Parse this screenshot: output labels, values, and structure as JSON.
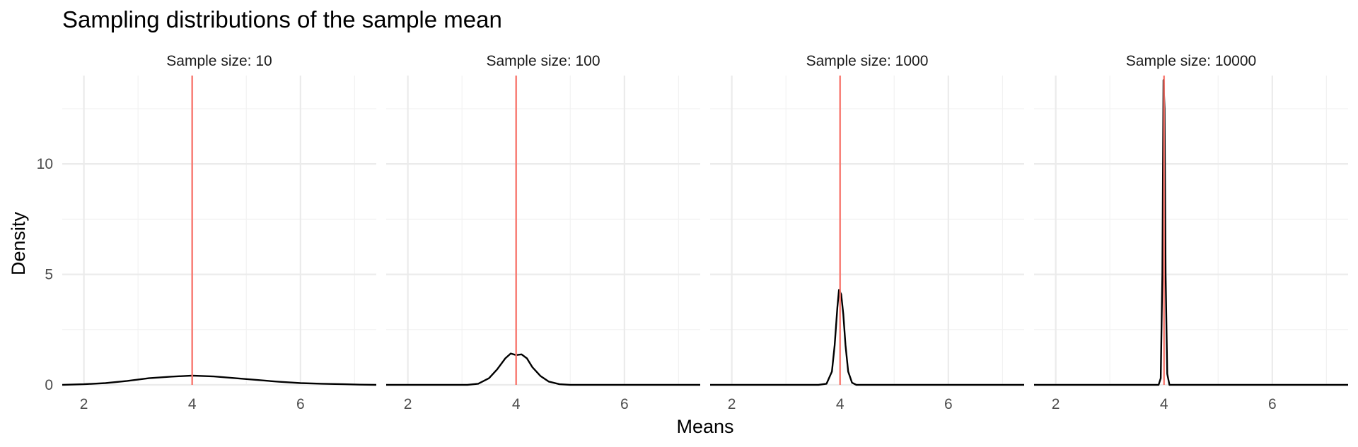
{
  "chart_data": {
    "type": "line",
    "title": "Sampling distributions of the sample mean",
    "xlabel": "Means",
    "ylabel": "Density",
    "xlim": [
      1.6,
      7.4
    ],
    "ylim": [
      0,
      14
    ],
    "x_ticks": [
      2,
      4,
      6
    ],
    "y_ticks": [
      0,
      5,
      10
    ],
    "grid": true,
    "reference_line": {
      "x": 4,
      "color": "#f8766d"
    },
    "line_color": "#000000",
    "panels": [
      {
        "label": "Sample size: 10",
        "points": [
          [
            1.6,
            0.0
          ],
          [
            2.0,
            0.03
          ],
          [
            2.4,
            0.08
          ],
          [
            2.8,
            0.18
          ],
          [
            3.2,
            0.3
          ],
          [
            3.6,
            0.37
          ],
          [
            4.0,
            0.42
          ],
          [
            4.4,
            0.38
          ],
          [
            4.8,
            0.3
          ],
          [
            5.2,
            0.22
          ],
          [
            5.6,
            0.14
          ],
          [
            6.0,
            0.08
          ],
          [
            6.4,
            0.05
          ],
          [
            6.8,
            0.03
          ],
          [
            7.1,
            0.01
          ],
          [
            7.4,
            0.0
          ]
        ]
      },
      {
        "label": "Sample size: 100",
        "points": [
          [
            1.6,
            0.0
          ],
          [
            3.1,
            0.0
          ],
          [
            3.3,
            0.05
          ],
          [
            3.5,
            0.3
          ],
          [
            3.65,
            0.7
          ],
          [
            3.8,
            1.2
          ],
          [
            3.9,
            1.42
          ],
          [
            4.0,
            1.35
          ],
          [
            4.1,
            1.38
          ],
          [
            4.2,
            1.2
          ],
          [
            4.3,
            0.8
          ],
          [
            4.45,
            0.4
          ],
          [
            4.6,
            0.15
          ],
          [
            4.8,
            0.03
          ],
          [
            5.0,
            0.0
          ],
          [
            7.4,
            0.0
          ]
        ]
      },
      {
        "label": "Sample size: 1000",
        "points": [
          [
            1.6,
            0.0
          ],
          [
            3.6,
            0.0
          ],
          [
            3.75,
            0.05
          ],
          [
            3.85,
            0.6
          ],
          [
            3.9,
            1.8
          ],
          [
            3.95,
            3.5
          ],
          [
            3.98,
            4.3
          ],
          [
            4.02,
            4.1
          ],
          [
            4.06,
            3.2
          ],
          [
            4.1,
            1.8
          ],
          [
            4.15,
            0.6
          ],
          [
            4.22,
            0.1
          ],
          [
            4.3,
            0.0
          ],
          [
            7.4,
            0.0
          ]
        ]
      },
      {
        "label": "Sample size: 10000",
        "points": [
          [
            1.6,
            0.0
          ],
          [
            3.9,
            0.0
          ],
          [
            3.94,
            0.3
          ],
          [
            3.97,
            5.0
          ],
          [
            3.99,
            13.8
          ],
          [
            4.01,
            12.5
          ],
          [
            4.03,
            5.0
          ],
          [
            4.06,
            0.5
          ],
          [
            4.1,
            0.0
          ],
          [
            7.4,
            0.0
          ]
        ]
      }
    ]
  }
}
